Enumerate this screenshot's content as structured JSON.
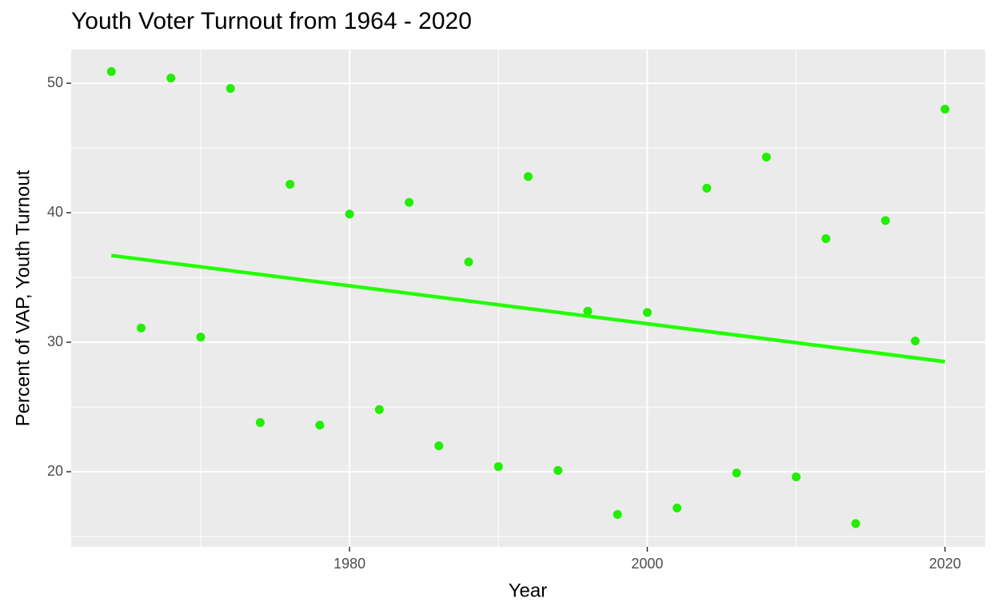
{
  "chart_data": {
    "type": "scatter",
    "title": "Youth Voter Turnout from 1964 - 2020",
    "x_label": "Year",
    "y_label": "Percent of VAP, Youth Turnout",
    "series": [
      {
        "color": "#22ee00",
        "x": [
          1964,
          1966,
          1968,
          1970,
          1972,
          1974,
          1976,
          1978,
          1980,
          1982,
          1984,
          1986,
          1988,
          1990,
          1992,
          1994,
          1996,
          1998,
          2000,
          2002,
          2004,
          2006,
          2008,
          2010,
          2012,
          2014,
          2016,
          2018,
          2020
        ],
        "values": [
          50.9,
          31.1,
          50.4,
          30.4,
          49.6,
          23.8,
          42.2,
          23.6,
          39.9,
          24.8,
          40.8,
          22.0,
          36.2,
          20.4,
          42.8,
          20.1,
          32.4,
          16.7,
          32.3,
          17.2,
          41.9,
          19.9,
          44.3,
          19.6,
          38.0,
          16.0,
          39.4,
          30.1,
          48.0
        ]
      }
    ],
    "trend": {
      "color": "#22ff00",
      "x": [
        1964,
        2020
      ],
      "values": [
        36.7,
        28.5
      ]
    },
    "xlim": [
      1961.3,
      2022.7
    ],
    "ylim": [
      14.2,
      52.6
    ],
    "xticks": [
      1980,
      2000,
      2020
    ],
    "yticks": [
      20,
      30,
      40,
      50
    ],
    "minor_xticks": [
      1970,
      1990,
      2010
    ],
    "minor_yticks": [
      15,
      25,
      35,
      45
    ],
    "grid": true
  }
}
